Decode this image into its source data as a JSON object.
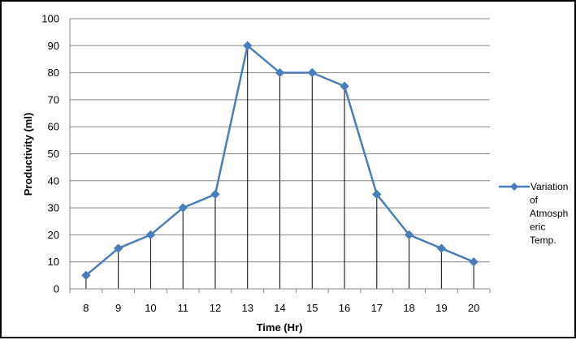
{
  "chart_data": {
    "type": "line",
    "title": "",
    "xlabel": "Time (Hr)",
    "ylabel": "Productivity (ml)",
    "categories": [
      "8",
      "9",
      "10",
      "11",
      "12",
      "13",
      "14",
      "15",
      "16",
      "17",
      "18",
      "19",
      "20"
    ],
    "series": [
      {
        "name": "Variation of Atmospheric Temp.",
        "legend_lines": [
          "Variation",
          "of",
          "Atmosph",
          "eric",
          "Temp."
        ],
        "values": [
          5,
          15,
          20,
          30,
          35,
          90,
          80,
          80,
          75,
          35,
          20,
          15,
          10
        ],
        "color": "#4a7ebb",
        "marker": "diamond"
      }
    ],
    "ylim": [
      0,
      100
    ],
    "yticks": [
      0,
      10,
      20,
      30,
      40,
      50,
      60,
      70,
      80,
      90,
      100
    ],
    "grid": "horizontal",
    "drop_lines": true,
    "legend_position": "right"
  }
}
